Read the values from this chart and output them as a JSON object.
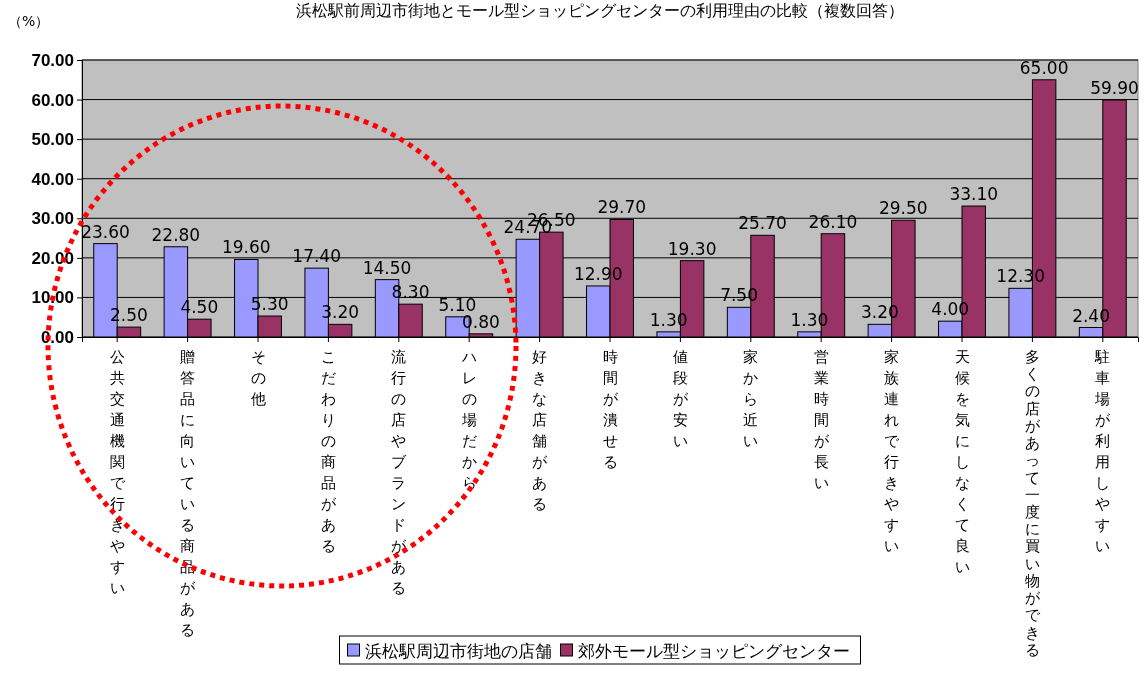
{
  "chart_data": {
    "type": "bar",
    "title": "浜松駅前周辺市街地とモール型ショッピングセンターの利用理由の比較（複数回答）",
    "ylabel": "（%）",
    "categories": [
      "公共交通機関で行きやすい",
      "贈答品に向いている商品がある",
      "その他",
      "こだわりの商品がある",
      "流行の店やブランドがある",
      "ハレの場だから",
      "好きな店舗がある",
      "時間が潰せる",
      "値段が安い",
      "家から近い",
      "営業時間が長い",
      "家族連れで行きやすい",
      "天候を気にしなくて良い",
      "多くの店があって一度に買い物ができる",
      "駐車場が利用しやすい"
    ],
    "series": [
      {
        "name": "浜松駅周辺市街地の店舗",
        "color": "#9999ff",
        "values": [
          23.6,
          22.8,
          19.6,
          17.4,
          14.5,
          5.1,
          24.7,
          12.9,
          1.3,
          7.5,
          1.3,
          3.2,
          4.0,
          12.3,
          2.4
        ],
        "value_labels": [
          "23.60",
          "22.80",
          "19.60",
          "17.40",
          "14.50",
          "5.10",
          "24.70",
          "12.90",
          "1.30",
          "7.50",
          "1.30",
          "3.20",
          "4.00",
          "12.30",
          "2.40"
        ]
      },
      {
        "name": "郊外モール型ショッピングセンター",
        "color": "#993366",
        "values": [
          2.5,
          4.5,
          5.3,
          3.2,
          8.3,
          0.8,
          26.5,
          29.7,
          19.3,
          25.7,
          26.1,
          29.5,
          33.1,
          65.0,
          59.9
        ],
        "value_labels": [
          "2.50",
          "4.50",
          "5.30",
          "3.20",
          "8.30",
          "0.80",
          "26.50",
          "29.70",
          "19.30",
          "25.70",
          "26.10",
          "29.50",
          "33.10",
          "65.00",
          "59.90"
        ]
      }
    ],
    "ylim": [
      0,
      70
    ],
    "yticks": [
      {
        "value": 0,
        "label": "0.00"
      },
      {
        "value": 10,
        "label": "10.00"
      },
      {
        "value": 20,
        "label": "20.00"
      },
      {
        "value": 30,
        "label": "30.00"
      },
      {
        "value": 40,
        "label": "40.00"
      },
      {
        "value": 50,
        "label": "50.00"
      },
      {
        "value": 60,
        "label": "60.00"
      },
      {
        "value": 70,
        "label": "70.00"
      }
    ],
    "grid": "y",
    "legend": "bottom"
  }
}
